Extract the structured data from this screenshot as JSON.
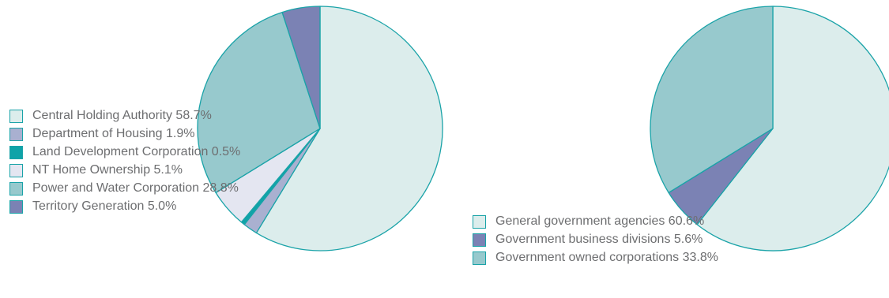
{
  "chart_data": [
    {
      "type": "pie",
      "title": "",
      "slices": [
        {
          "label": "Central Holding Authority 58.7%",
          "value": 58.7,
          "color": "#dcedec"
        },
        {
          "label": "Department of Housing 1.9%",
          "value": 1.9,
          "color": "#a9b0d0"
        },
        {
          "label": "Land Development Corporation 0.5%",
          "value": 0.5,
          "color": "#0fa3a8"
        },
        {
          "label": "NT Home Ownership 5.1%",
          "value": 5.1,
          "color": "#e4e6f1"
        },
        {
          "label": "Power and Water Corporation 28.8%",
          "value": 28.8,
          "color": "#97c9cd"
        },
        {
          "label": "Territory Generation 5.0%",
          "value": 5.0,
          "color": "#7b82b4"
        }
      ],
      "legend_position": "left"
    },
    {
      "type": "pie",
      "title": "",
      "slices": [
        {
          "label": "General government agencies 60.6%",
          "value": 60.6,
          "color": "#dcedec"
        },
        {
          "label": "Government business divisions 5.6%",
          "value": 5.6,
          "color": "#7b82b4"
        },
        {
          "label": "Government owned corporations 33.8%",
          "value": 33.8,
          "color": "#97c9cd"
        }
      ],
      "legend_position": "left"
    }
  ],
  "style": {
    "edge_color": "#1aa3a8",
    "text_color": "#6d6e70"
  }
}
